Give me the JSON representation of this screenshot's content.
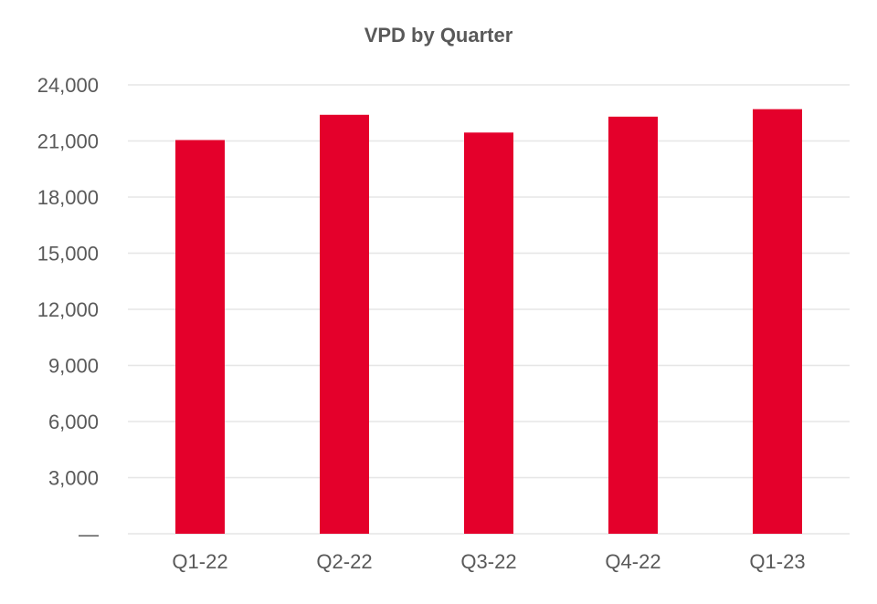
{
  "chart_data": {
    "type": "bar",
    "title": "VPD by Quarter",
    "xlabel": "",
    "ylabel": "",
    "categories": [
      "Q1-22",
      "Q2-22",
      "Q3-22",
      "Q4-22",
      "Q1-23"
    ],
    "values": [
      21050,
      22400,
      21450,
      22300,
      22700
    ],
    "ylim": [
      0,
      24000
    ],
    "yticks": [
      0,
      3000,
      6000,
      9000,
      12000,
      15000,
      18000,
      21000,
      24000
    ],
    "ytick_labels": [
      "—",
      "3,000",
      "6,000",
      "9,000",
      "12,000",
      "15,000",
      "18,000",
      "21,000",
      "24,000"
    ],
    "grid": true,
    "legend": "none",
    "colors": {
      "bar": "#E4002B",
      "grid": "#E6E6E6",
      "text": "#595959"
    }
  }
}
